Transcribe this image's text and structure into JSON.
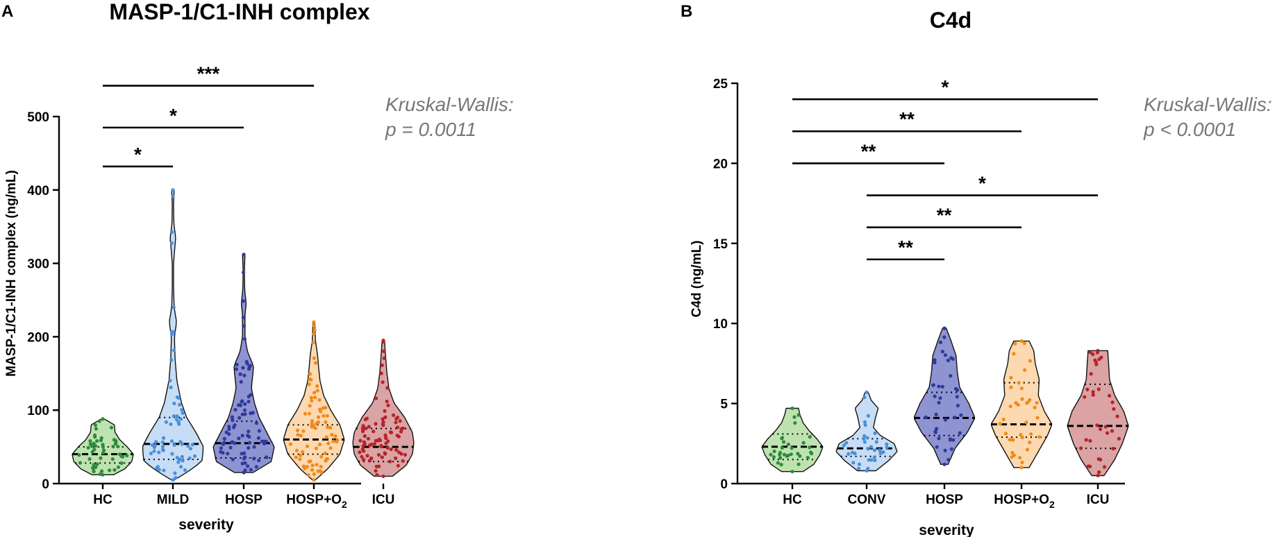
{
  "figure": {
    "background": "#ffffff",
    "stat_text_color": "#777777"
  },
  "chart_data": [
    {
      "panel_label": "A",
      "type": "violin",
      "title": "MASP-1/C1-INH complex",
      "xlabel": "severity",
      "ylabel": "MASP-1/C1-INH complex (ng/mL)",
      "ylim": [
        0,
        500
      ],
      "yticks": [
        0,
        100,
        200,
        300,
        400,
        500
      ],
      "test": {
        "line1": "Kruskal-Wallis:",
        "line2": "p = 0.0011"
      },
      "groups": [
        {
          "label": "HC",
          "sub": "",
          "fill": "#bfe3b0",
          "dot": "#2e8b3d",
          "n": 48,
          "min": 12,
          "max": 88,
          "median": 40,
          "q1": 28,
          "q3": 50,
          "shape": [
            [
              12,
              0.35
            ],
            [
              20,
              0.72
            ],
            [
              30,
              0.95
            ],
            [
              40,
              1.0
            ],
            [
              50,
              0.8
            ],
            [
              60,
              0.55
            ],
            [
              70,
              0.4
            ],
            [
              80,
              0.38
            ],
            [
              88,
              0.05
            ]
          ]
        },
        {
          "label": "MILD",
          "sub": "",
          "fill": "#c7ddf5",
          "dot": "#4a90d9",
          "n": 60,
          "min": 5,
          "max": 400,
          "median": 54,
          "q1": 33,
          "q3": 90,
          "shape": [
            [
              5,
              0.05
            ],
            [
              15,
              0.45
            ],
            [
              30,
              0.95
            ],
            [
              50,
              1.0
            ],
            [
              70,
              0.75
            ],
            [
              90,
              0.45
            ],
            [
              110,
              0.28
            ],
            [
              140,
              0.13
            ],
            [
              170,
              0.07
            ],
            [
              200,
              0.05
            ],
            [
              220,
              0.12
            ],
            [
              240,
              0.04
            ],
            [
              270,
              0.02
            ],
            [
              300,
              0.02
            ],
            [
              335,
              0.09
            ],
            [
              355,
              0.03
            ],
            [
              380,
              0.02
            ],
            [
              400,
              0.04
            ]
          ]
        },
        {
          "label": "HOSP",
          "sub": "",
          "fill": "#8e93d1",
          "dot": "#2f3a9a",
          "n": 80,
          "min": 15,
          "max": 312,
          "median": 55,
          "q1": 35,
          "q3": 85,
          "shape": [
            [
              15,
              0.3
            ],
            [
              30,
              0.9
            ],
            [
              50,
              1.0
            ],
            [
              70,
              0.75
            ],
            [
              90,
              0.5
            ],
            [
              110,
              0.35
            ],
            [
              130,
              0.25
            ],
            [
              150,
              0.3
            ],
            [
              160,
              0.32
            ],
            [
              180,
              0.12
            ],
            [
              200,
              0.04
            ],
            [
              230,
              0.04
            ],
            [
              245,
              0.08
            ],
            [
              265,
              0.03
            ],
            [
              290,
              0.02
            ],
            [
              312,
              0.04
            ]
          ]
        },
        {
          "label": "HOSP+O",
          "sub": "2",
          "fill": "#fcd9b0",
          "dot": "#f08a1c",
          "n": 78,
          "min": 5,
          "max": 220,
          "median": 60,
          "q1": 40,
          "q3": 80,
          "shape": [
            [
              5,
              0.05
            ],
            [
              20,
              0.45
            ],
            [
              40,
              0.85
            ],
            [
              60,
              1.0
            ],
            [
              80,
              0.85
            ],
            [
              100,
              0.55
            ],
            [
              120,
              0.32
            ],
            [
              140,
              0.2
            ],
            [
              160,
              0.15
            ],
            [
              175,
              0.12
            ],
            [
              195,
              0.05
            ],
            [
              220,
              0.03
            ]
          ]
        },
        {
          "label": "ICU",
          "sub": "",
          "fill": "#dba3a3",
          "dot": "#b3242c",
          "n": 85,
          "min": 10,
          "max": 195,
          "median": 50,
          "q1": 30,
          "q3": 75,
          "shape": [
            [
              10,
              0.3
            ],
            [
              25,
              0.75
            ],
            [
              40,
              0.95
            ],
            [
              55,
              1.0
            ],
            [
              70,
              0.95
            ],
            [
              90,
              0.7
            ],
            [
              110,
              0.35
            ],
            [
              130,
              0.18
            ],
            [
              150,
              0.12
            ],
            [
              170,
              0.08
            ],
            [
              195,
              0.04
            ]
          ]
        }
      ],
      "comparisons": [
        {
          "from": 0,
          "to": 1,
          "y": 432,
          "label": "*"
        },
        {
          "from": 0,
          "to": 2,
          "y": 485,
          "label": "*"
        },
        {
          "from": 0,
          "to": 3,
          "y": 542,
          "label": "***"
        }
      ]
    },
    {
      "panel_label": "B",
      "type": "violin",
      "title": "C4d",
      "xlabel": "severity",
      "ylabel": "C4d (ng/mL)",
      "ylim": [
        0,
        25
      ],
      "yticks": [
        0,
        5,
        10,
        15,
        20,
        25
      ],
      "test": {
        "line1": "Kruskal-Wallis:",
        "line2": "p < 0.0001"
      },
      "groups": [
        {
          "label": "HC",
          "sub": "",
          "fill": "#bfe3b0",
          "dot": "#2e8b3d",
          "n": 30,
          "min": 0.75,
          "max": 4.7,
          "median": 2.3,
          "q1": 1.5,
          "q3": 3.1,
          "shape": [
            [
              0.75,
              0.35
            ],
            [
              1.2,
              0.7
            ],
            [
              1.8,
              0.9
            ],
            [
              2.3,
              1.0
            ],
            [
              2.8,
              0.8
            ],
            [
              3.3,
              0.55
            ],
            [
              3.8,
              0.35
            ],
            [
              4.3,
              0.25
            ],
            [
              4.7,
              0.2
            ]
          ]
        },
        {
          "label": "CONV",
          "sub": "",
          "fill": "#c7ddf5",
          "dot": "#4a90d9",
          "n": 32,
          "min": 0.8,
          "max": 5.7,
          "median": 2.2,
          "q1": 1.7,
          "q3": 2.8,
          "shape": [
            [
              0.8,
              0.3
            ],
            [
              1.4,
              0.7
            ],
            [
              2.0,
              1.0
            ],
            [
              2.5,
              0.9
            ],
            [
              3.0,
              0.45
            ],
            [
              3.5,
              0.22
            ],
            [
              4.2,
              0.3
            ],
            [
              4.7,
              0.38
            ],
            [
              5.2,
              0.15
            ],
            [
              5.7,
              0.05
            ]
          ]
        },
        {
          "label": "HOSP",
          "sub": "",
          "fill": "#8e93d1",
          "dot": "#2f3a9a",
          "n": 38,
          "min": 1.2,
          "max": 9.7,
          "median": 4.1,
          "q1": 3.0,
          "q3": 5.7,
          "shape": [
            [
              1.2,
              0.12
            ],
            [
              2.2,
              0.35
            ],
            [
              3.2,
              0.75
            ],
            [
              4.1,
              1.0
            ],
            [
              5.0,
              0.8
            ],
            [
              6.0,
              0.5
            ],
            [
              7.0,
              0.42
            ],
            [
              8.0,
              0.38
            ],
            [
              9.0,
              0.2
            ],
            [
              9.7,
              0.06
            ]
          ]
        },
        {
          "label": "HOSP+O",
          "sub": "2",
          "fill": "#fcd9b0",
          "dot": "#f08a1c",
          "n": 36,
          "min": 1.0,
          "max": 8.9,
          "median": 3.7,
          "q1": 2.9,
          "q3": 6.3,
          "shape": [
            [
              1.0,
              0.25
            ],
            [
              2.0,
              0.55
            ],
            [
              3.0,
              0.85
            ],
            [
              3.7,
              1.0
            ],
            [
              4.5,
              0.75
            ],
            [
              5.5,
              0.55
            ],
            [
              6.5,
              0.58
            ],
            [
              7.5,
              0.45
            ],
            [
              8.3,
              0.4
            ],
            [
              8.9,
              0.25
            ]
          ]
        },
        {
          "label": "ICU",
          "sub": "",
          "fill": "#dba3a3",
          "dot": "#b3242c",
          "n": 34,
          "min": 0.5,
          "max": 8.3,
          "median": 3.6,
          "q1": 2.2,
          "q3": 6.2,
          "shape": [
            [
              0.5,
              0.2
            ],
            [
              1.5,
              0.55
            ],
            [
              2.5,
              0.8
            ],
            [
              3.6,
              1.0
            ],
            [
              4.5,
              0.85
            ],
            [
              5.5,
              0.55
            ],
            [
              6.5,
              0.38
            ],
            [
              7.5,
              0.35
            ],
            [
              8.3,
              0.32
            ]
          ]
        }
      ],
      "comparisons": [
        {
          "from": 0,
          "to": 4,
          "y": 24.0,
          "label": "*"
        },
        {
          "from": 0,
          "to": 3,
          "y": 22.0,
          "label": "**"
        },
        {
          "from": 0,
          "to": 2,
          "y": 20.0,
          "label": "**"
        },
        {
          "from": 1,
          "to": 4,
          "y": 18.0,
          "label": "*"
        },
        {
          "from": 1,
          "to": 3,
          "y": 16.0,
          "label": "**"
        },
        {
          "from": 1,
          "to": 2,
          "y": 14.0,
          "label": "**"
        }
      ]
    }
  ]
}
